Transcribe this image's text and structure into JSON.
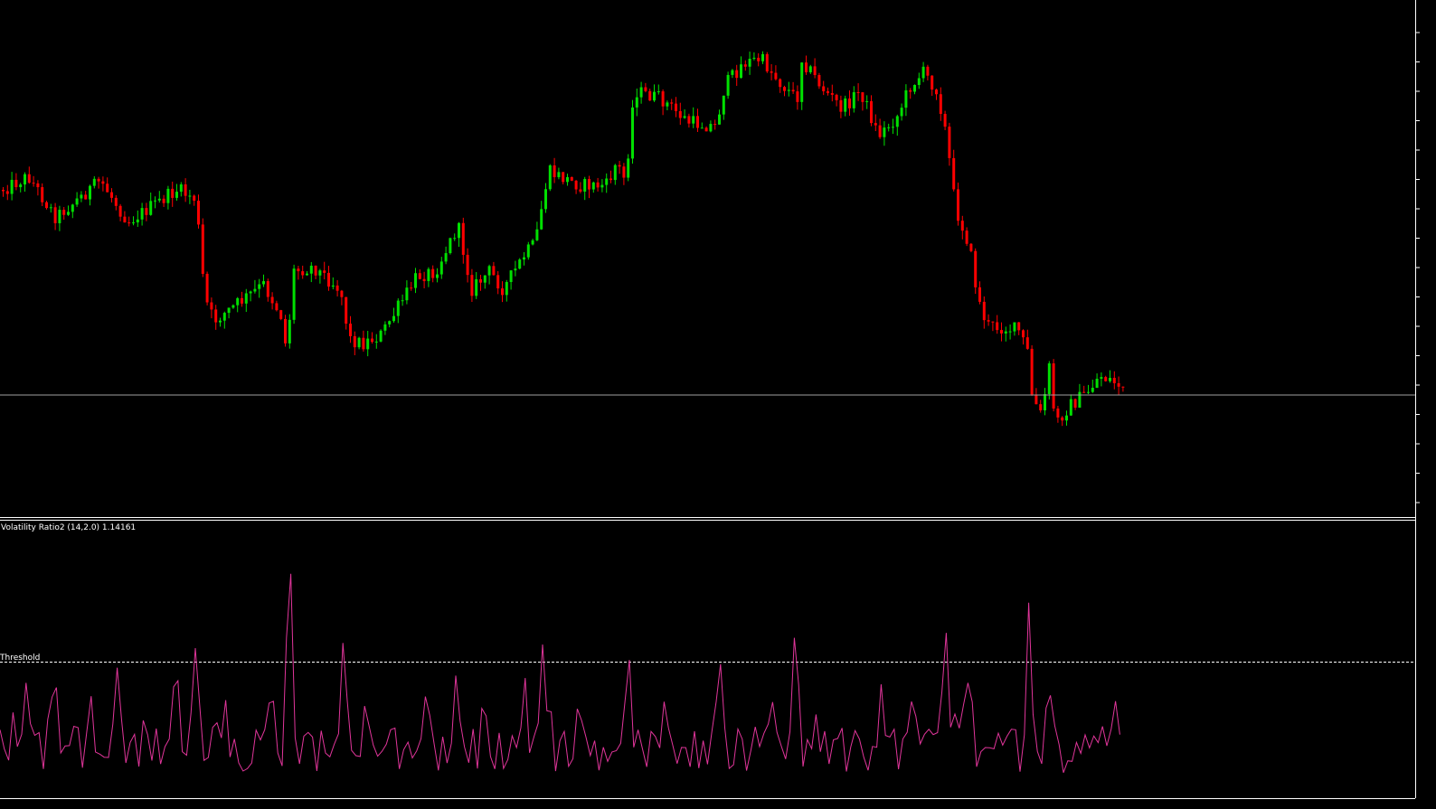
{
  "indicator": {
    "title": "Volatility Ratio2 (14,2.0) 1.14161",
    "threshold_label": "Threshold"
  }
}
